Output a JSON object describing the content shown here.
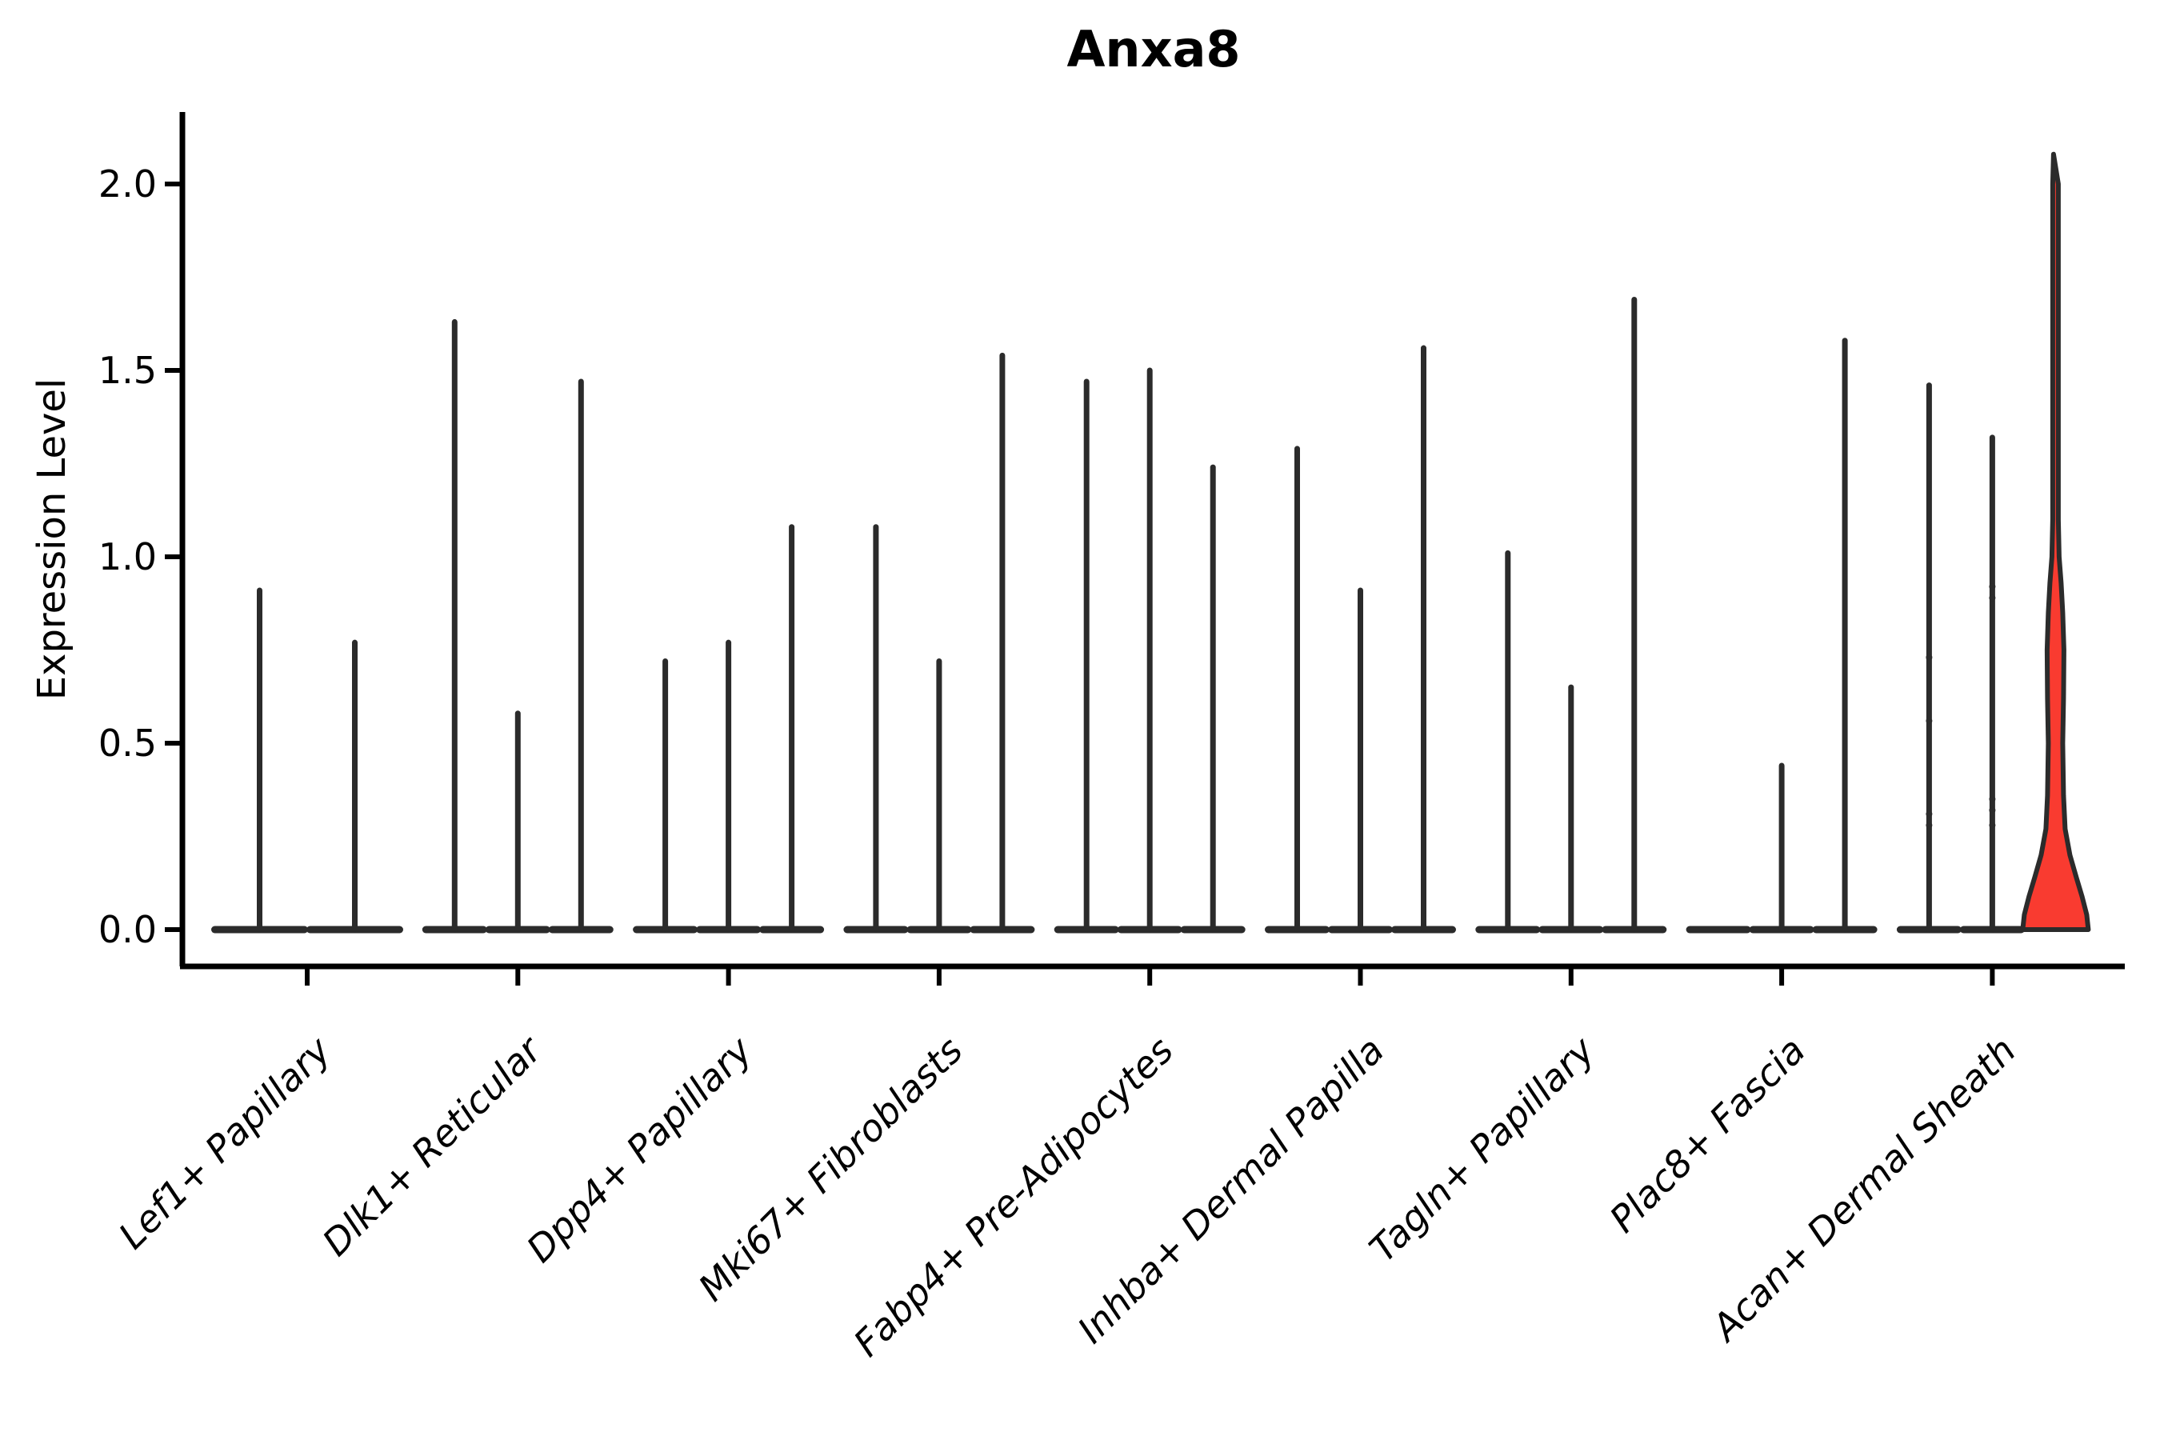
{
  "chart_data": {
    "type": "violin",
    "title": "Anxa8",
    "ylabel": "Expression Level",
    "xlabel": "",
    "ytick_values": [
      0,
      0.5,
      1.0,
      1.5,
      2.0
    ],
    "ytick_labels": [
      "0.0",
      "0.5",
      "1.0",
      "1.5",
      "2.0"
    ],
    "ylim": [
      -0.1,
      2.3
    ],
    "grid": false,
    "legend": null,
    "x_label_rotation_deg": 45,
    "x_label_style": "italic",
    "colors": {
      "violin_stroke": "#2b2b2b",
      "highlight_fill": "#F93B30",
      "axis": "#000000",
      "background": "#ffffff"
    },
    "categories": [
      "Lef1+ Papillary",
      "Dlk1+ Reticular",
      "Dpp4+ Papillary",
      "Mki67+ Fibroblasts",
      "Fabp4+ Pre-Adipocytes",
      "Inhba+ Dermal Papilla",
      "Tagln+ Papillary",
      "Plac8+ Fascia",
      "Acan+ Dermal Sheath"
    ],
    "groups": [
      {
        "category": "Lef1+ Papillary",
        "violins": [
          {
            "peak": 0.91
          },
          {
            "peak": 0.77
          }
        ]
      },
      {
        "category": "Dlk1+ Reticular",
        "violins": [
          {
            "peak": 1.63
          },
          {
            "peak": 0.58
          },
          {
            "peak": 1.47
          }
        ]
      },
      {
        "category": "Dpp4+ Papillary",
        "violins": [
          {
            "peak": 0.72
          },
          {
            "peak": 0.77
          },
          {
            "peak": 1.08
          }
        ]
      },
      {
        "category": "Mki67+ Fibroblasts",
        "violins": [
          {
            "peak": 1.08
          },
          {
            "peak": 0.72
          },
          {
            "peak": 1.54
          }
        ]
      },
      {
        "category": "Fabp4+ Pre-Adipocytes",
        "violins": [
          {
            "peak": 1.47
          },
          {
            "peak": 1.5
          },
          {
            "peak": 1.24
          }
        ]
      },
      {
        "category": "Inhba+ Dermal Papilla",
        "violins": [
          {
            "peak": 1.29
          },
          {
            "peak": 0.91
          },
          {
            "peak": 1.56
          }
        ]
      },
      {
        "category": "Tagln+ Papillary",
        "violins": [
          {
            "peak": 1.01
          },
          {
            "peak": 0.65
          },
          {
            "peak": 1.69
          }
        ]
      },
      {
        "category": "Plac8+ Fascia",
        "violins": [
          {
            "peak": 0
          },
          {
            "peak": 0.44
          },
          {
            "peak": 1.58
          }
        ]
      },
      {
        "category": "Acan+ Dermal Sheath",
        "violins": [
          {
            "peak": 1.46,
            "points": [
              0.73,
              0.56,
              0.31,
              0.28
            ]
          },
          {
            "peak": 1.32,
            "points": [
              0.92,
              0.89,
              0.35,
              0.32,
              0.28
            ]
          },
          {
            "peak": 2.08,
            "filled": true,
            "fill_color": "#F93B30",
            "body_profile": [
              [
                0,
                41
              ],
              [
                0.04,
                39
              ],
              [
                0.09,
                33
              ],
              [
                0.14,
                26
              ],
              [
                0.2,
                18
              ],
              [
                0.27,
                12
              ],
              [
                0.36,
                10
              ],
              [
                0.5,
                9
              ],
              [
                0.62,
                10
              ],
              [
                0.75,
                10.5
              ],
              [
                0.85,
                9
              ],
              [
                0.93,
                7
              ],
              [
                1.0,
                4.5
              ],
              [
                1.1,
                3.5
              ],
              [
                1.6,
                3.5
              ],
              [
                2.0,
                3.5
              ],
              [
                2.08,
                2.5
              ]
            ]
          }
        ]
      }
    ]
  }
}
